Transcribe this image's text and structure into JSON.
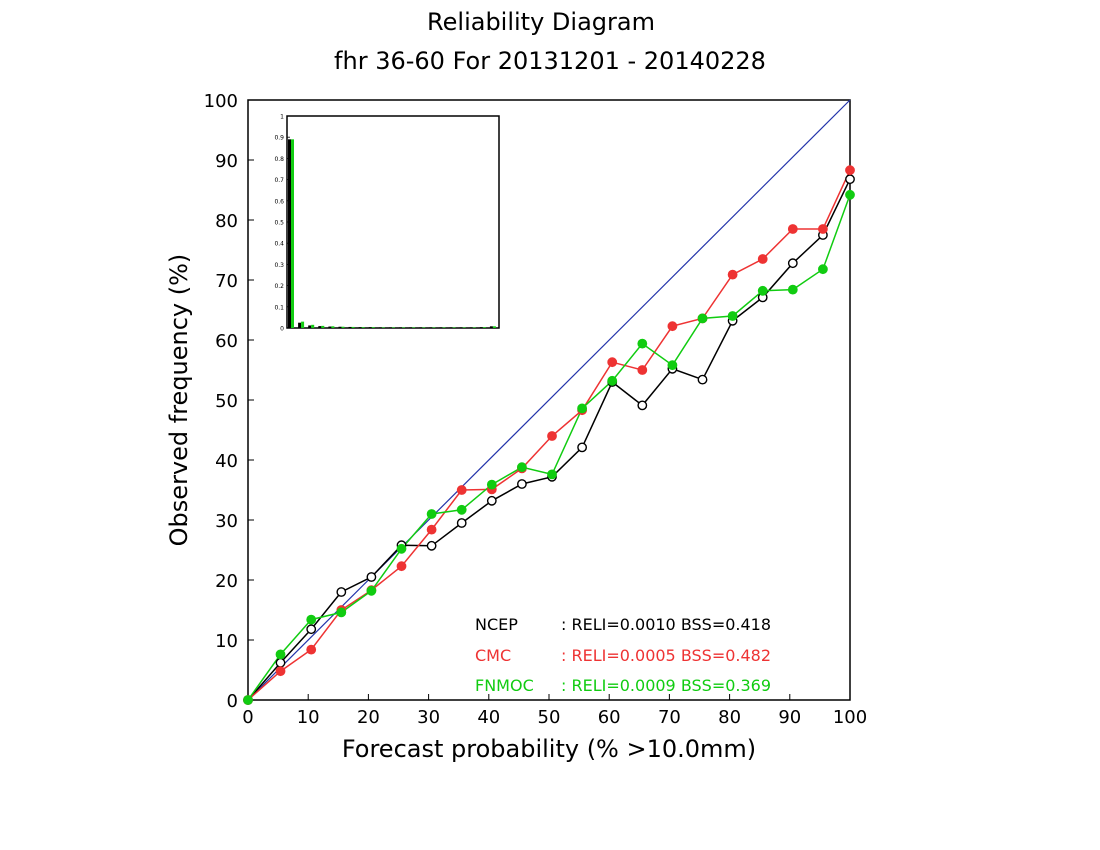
{
  "chart_data": {
    "type": "line",
    "title": "Reliability Diagram",
    "subtitle": "fhr 36-60 For 20131201 - 20140228",
    "xlabel": "Forecast probability (% >10.0mm)",
    "ylabel": "Observed frequency (%)",
    "xlim": [
      0,
      100
    ],
    "ylim": [
      0,
      100
    ],
    "xticks": [
      "0",
      "10",
      "20",
      "30",
      "40",
      "50",
      "60",
      "70",
      "80",
      "90",
      "100"
    ],
    "yticks": [
      "0",
      "10",
      "20",
      "30",
      "40",
      "50",
      "60",
      "70",
      "80",
      "90",
      "100"
    ],
    "grid": false,
    "diagonal_color": "#2233aa",
    "x": [
      0,
      5.4,
      10.5,
      15.5,
      20.5,
      25.5,
      30.5,
      35.5,
      40.5,
      45.5,
      50.5,
      55.5,
      60.5,
      65.5,
      70.5,
      75.5,
      80.5,
      85.5,
      90.5,
      95.5,
      100
    ],
    "series": [
      {
        "name": "NCEP",
        "color": "#000000",
        "marker": "open-circle",
        "values": [
          0,
          6.2,
          11.8,
          18.0,
          20.5,
          25.8,
          25.7,
          29.5,
          33.2,
          36.0,
          37.2,
          42.1,
          53.0,
          49.1,
          55.2,
          53.4,
          63.2,
          67.1,
          72.8,
          77.5,
          86.8
        ],
        "stats": ": RELI=0.0010  BSS=0.418"
      },
      {
        "name": "CMC",
        "color": "#ee3333",
        "marker": "filled-circle",
        "values": [
          0,
          4.8,
          8.4,
          15.0,
          18.3,
          22.3,
          28.4,
          35.0,
          35.1,
          38.6,
          44.0,
          48.3,
          56.3,
          55.0,
          62.3,
          63.6,
          70.9,
          73.5,
          78.5,
          78.5,
          88.3
        ],
        "stats": ": RELI=0.0005  BSS=0.482"
      },
      {
        "name": "FNMOC",
        "color": "#11cc11",
        "marker": "filled-circle",
        "values": [
          0,
          7.6,
          13.4,
          14.6,
          18.2,
          25.2,
          31.0,
          31.7,
          35.9,
          38.8,
          37.6,
          48.6,
          53.2,
          59.4,
          55.8,
          63.6,
          64.0,
          68.2,
          68.4,
          71.8,
          84.2
        ],
        "stats": ": RELI=0.0009  BSS=0.369"
      }
    ],
    "inset": {
      "type": "bar",
      "ylim": [
        0,
        1
      ],
      "yticks": [
        "0",
        "0.1",
        "0.2",
        "0.3",
        "0.4",
        "0.5",
        "0.6",
        "0.7",
        "0.8",
        "0.9",
        "1"
      ],
      "bins": 21,
      "values": [
        0.89,
        0.025,
        0.012,
        0.009,
        0.007,
        0.006,
        0.005,
        0.004,
        0.004,
        0.003,
        0.003,
        0.003,
        0.003,
        0.003,
        0.003,
        0.003,
        0.003,
        0.003,
        0.003,
        0.004,
        0.008
      ],
      "green_values": [
        0.89,
        0.03,
        0.015,
        0.01,
        0.008,
        0.006,
        0.005,
        0.004,
        0.004,
        0.003,
        0.003,
        0.003,
        0.003,
        0.003,
        0.003,
        0.003,
        0.003,
        0.003,
        0.003,
        0.004,
        0.008
      ]
    }
  }
}
